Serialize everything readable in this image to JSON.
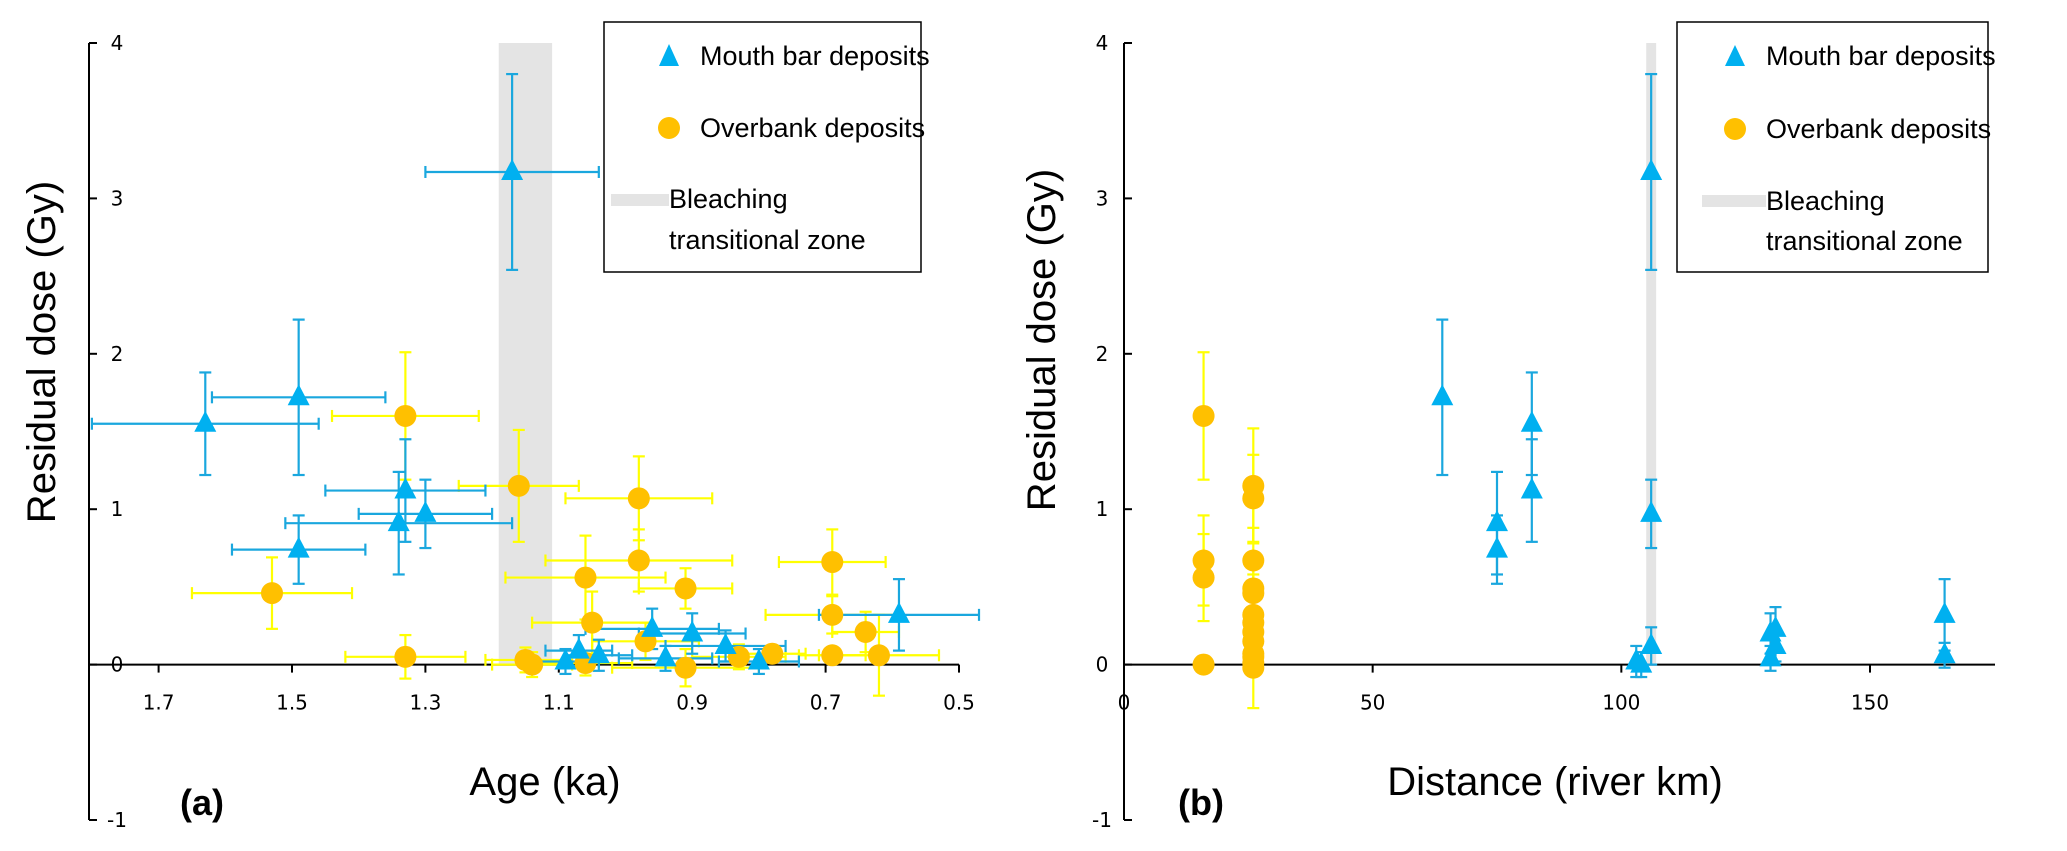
{
  "colors": {
    "mouth_bar": "#00B0F0",
    "mouth_bar_err": "#1AA7DE",
    "overbank": "#FFC000",
    "overbank_err": "#FFFF00",
    "bleaching_zone": "#E4E4E4",
    "axis": "#000000"
  },
  "legend": {
    "mouth_bar": "Mouth bar deposits",
    "overbank": "Overbank deposits",
    "zone_line1": "Bleaching",
    "zone_line2": "transitional zone"
  },
  "chart_data": [
    {
      "type": "scatter",
      "panel_label": "(a)",
      "xlabel": "Age (ka)",
      "ylabel": "Residual dose (Gy)",
      "x_reversed": true,
      "xlim": [
        1.8,
        0.5
      ],
      "ylim": [
        -1,
        4
      ],
      "x_ticks": [
        "1.7",
        "1.5",
        "1.3",
        "1.1",
        "0.9",
        "0.7",
        "0.5"
      ],
      "x_tick_values": [
        1.7,
        1.5,
        1.3,
        1.1,
        0.9,
        0.7,
        0.5
      ],
      "y_ticks": [
        "4",
        "3",
        "2",
        "1",
        "0",
        "-1"
      ],
      "y_tick_values": [
        4,
        3,
        2,
        1,
        0,
        -1
      ],
      "grid": false,
      "legend_position": "top-right",
      "bleaching_zone": [
        1.19,
        1.11
      ],
      "series": [
        {
          "name": "Mouth bar deposits",
          "marker": "triangle",
          "points": [
            {
              "x": 1.17,
              "y": 3.17,
              "xerr": 0.13,
              "yerr": 0.63
            },
            {
              "x": 1.49,
              "y": 1.72,
              "xerr": 0.13,
              "yerr": 0.5
            },
            {
              "x": 1.63,
              "y": 1.55,
              "xerr": 0.17,
              "yerr": 0.33
            },
            {
              "x": 1.33,
              "y": 1.12,
              "xerr": 0.12,
              "yerr": 0.33
            },
            {
              "x": 1.3,
              "y": 0.97,
              "xerr": 0.1,
              "yerr": 0.22
            },
            {
              "x": 1.34,
              "y": 0.91,
              "xerr": 0.17,
              "yerr": 0.33
            },
            {
              "x": 1.49,
              "y": 0.74,
              "xerr": 0.1,
              "yerr": 0.22
            },
            {
              "x": 0.59,
              "y": 0.32,
              "xerr": 0.12,
              "yerr": 0.23
            },
            {
              "x": 0.96,
              "y": 0.23,
              "xerr": 0.1,
              "yerr": 0.13
            },
            {
              "x": 0.9,
              "y": 0.2,
              "xerr": 0.08,
              "yerr": 0.13
            },
            {
              "x": 0.85,
              "y": 0.12,
              "xerr": 0.09,
              "yerr": 0.1
            },
            {
              "x": 1.07,
              "y": 0.09,
              "xerr": 0.05,
              "yerr": 0.1
            },
            {
              "x": 1.04,
              "y": 0.06,
              "xerr": 0.05,
              "yerr": 0.1
            },
            {
              "x": 0.94,
              "y": 0.04,
              "xerr": 0.07,
              "yerr": 0.08
            },
            {
              "x": 1.09,
              "y": 0.02,
              "xerr": 0.05,
              "yerr": 0.08
            },
            {
              "x": 0.8,
              "y": 0.02,
              "xerr": 0.06,
              "yerr": 0.08
            }
          ]
        },
        {
          "name": "Overbank deposits",
          "marker": "circle",
          "points": [
            {
              "x": 1.33,
              "y": 1.6,
              "xerr": 0.11,
              "yerr": 0.41
            },
            {
              "x": 1.16,
              "y": 1.15,
              "xerr": 0.09,
              "yerr": 0.36
            },
            {
              "x": 0.98,
              "y": 1.07,
              "xerr": 0.11,
              "yerr": 0.27
            },
            {
              "x": 0.98,
              "y": 0.67,
              "xerr": 0.14,
              "yerr": 0.2
            },
            {
              "x": 0.69,
              "y": 0.66,
              "xerr": 0.08,
              "yerr": 0.21
            },
            {
              "x": 1.06,
              "y": 0.56,
              "xerr": 0.12,
              "yerr": 0.27
            },
            {
              "x": 0.91,
              "y": 0.49,
              "xerr": 0.07,
              "yerr": 0.13
            },
            {
              "x": 1.53,
              "y": 0.46,
              "xerr": 0.12,
              "yerr": 0.23
            },
            {
              "x": 0.69,
              "y": 0.32,
              "xerr": 0.1,
              "yerr": 0.12
            },
            {
              "x": 1.05,
              "y": 0.27,
              "xerr": 0.09,
              "yerr": 0.2
            },
            {
              "x": 0.64,
              "y": 0.21,
              "xerr": 0.05,
              "yerr": 0.13
            },
            {
              "x": 0.97,
              "y": 0.15,
              "xerr": 0.08,
              "yerr": 0.12
            },
            {
              "x": 0.78,
              "y": 0.07,
              "xerr": 0.05,
              "yerr": 0.05
            },
            {
              "x": 0.83,
              "y": 0.05,
              "xerr": 0.07,
              "yerr": 0.08
            },
            {
              "x": 0.69,
              "y": 0.06,
              "xerr": 0.05,
              "yerr": 0.05
            },
            {
              "x": 0.62,
              "y": 0.06,
              "xerr": 0.09,
              "yerr": 0.26
            },
            {
              "x": 1.33,
              "y": 0.05,
              "xerr": 0.09,
              "yerr": 0.14
            },
            {
              "x": 1.15,
              "y": 0.03,
              "xerr": 0.06,
              "yerr": 0.08
            },
            {
              "x": 1.14,
              "y": 0.0,
              "xerr": 0.06,
              "yerr": 0.08
            },
            {
              "x": 1.06,
              "y": 0.01,
              "xerr": 0.07,
              "yerr": 0.08
            },
            {
              "x": 0.91,
              "y": -0.02,
              "xerr": 0.11,
              "yerr": 0.12
            }
          ]
        }
      ]
    },
    {
      "type": "scatter",
      "panel_label": "(b)",
      "xlabel": "Distance (river km)",
      "ylabel": "Residual dose (Gy)",
      "xlim": [
        0,
        175
      ],
      "ylim": [
        -1,
        4
      ],
      "x_ticks": [
        "0",
        "50",
        "100",
        "150"
      ],
      "x_tick_values": [
        0,
        50,
        100,
        150
      ],
      "y_ticks": [
        "4",
        "3",
        "2",
        "1",
        "0",
        "-1"
      ],
      "y_tick_values": [
        4,
        3,
        2,
        1,
        0,
        -1
      ],
      "grid": false,
      "legend_position": "top-right",
      "bleaching_zone": [
        105,
        107
      ],
      "series": [
        {
          "name": "Mouth bar deposits",
          "marker": "triangle",
          "points": [
            {
              "x": 106,
              "y": 3.17,
              "yerr": 0.63
            },
            {
              "x": 64,
              "y": 1.72,
              "yerr": 0.5
            },
            {
              "x": 82,
              "y": 1.55,
              "yerr": 0.33
            },
            {
              "x": 82,
              "y": 1.12,
              "yerr": 0.33
            },
            {
              "x": 106,
              "y": 0.97,
              "yerr": 0.22
            },
            {
              "x": 75,
              "y": 0.91,
              "yerr": 0.33
            },
            {
              "x": 75,
              "y": 0.74,
              "yerr": 0.22
            },
            {
              "x": 165,
              "y": 0.32,
              "yerr": 0.23
            },
            {
              "x": 131,
              "y": 0.23,
              "yerr": 0.14
            },
            {
              "x": 130,
              "y": 0.2,
              "yerr": 0.13
            },
            {
              "x": 106,
              "y": 0.12,
              "yerr": 0.12
            },
            {
              "x": 131,
              "y": 0.12,
              "yerr": 0.1
            },
            {
              "x": 165,
              "y": 0.06,
              "yerr": 0.08
            },
            {
              "x": 130,
              "y": 0.04,
              "yerr": 0.08
            },
            {
              "x": 103,
              "y": 0.02,
              "yerr": 0.1
            },
            {
              "x": 104,
              "y": 0.0,
              "yerr": 0.08
            }
          ]
        },
        {
          "name": "Overbank deposits",
          "marker": "circle",
          "points": [
            {
              "x": 16,
              "y": 1.6,
              "yerr": 0.41
            },
            {
              "x": 16,
              "y": 0.67,
              "yerr": 0.29
            },
            {
              "x": 16,
              "y": 0.56,
              "yerr": 0.28
            },
            {
              "x": 16,
              "y": 0.0,
              "yerr": 0.05
            },
            {
              "x": 26,
              "y": 1.15,
              "yerr": 0.37
            },
            {
              "x": 26,
              "y": 1.07,
              "yerr": 0.28
            },
            {
              "x": 26,
              "y": 0.67,
              "yerr": 0.21
            },
            {
              "x": 26,
              "y": 0.49,
              "yerr": 0.13
            },
            {
              "x": 26,
              "y": 0.46,
              "yerr": 0.12
            },
            {
              "x": 26,
              "y": 0.32,
              "yerr": 0.12
            },
            {
              "x": 26,
              "y": 0.27,
              "yerr": 0.2
            },
            {
              "x": 26,
              "y": 0.21,
              "yerr": 0.13
            },
            {
              "x": 26,
              "y": 0.15,
              "yerr": 0.12
            },
            {
              "x": 26,
              "y": 0.07,
              "yerr": 0.05
            },
            {
              "x": 26,
              "y": 0.05,
              "yerr": 0.08
            },
            {
              "x": 26,
              "y": 0.01,
              "yerr": 0.08
            },
            {
              "x": 26,
              "y": -0.02,
              "yerr": 0.26
            }
          ]
        }
      ]
    }
  ]
}
